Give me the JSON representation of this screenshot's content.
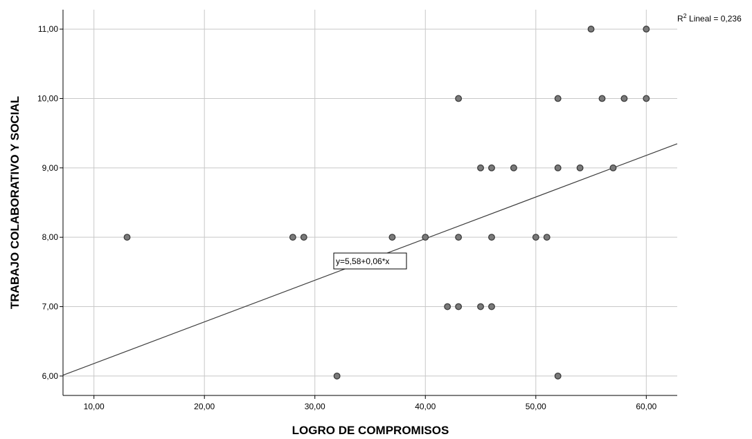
{
  "chart_data": {
    "type": "scatter",
    "xlabel": "LOGRO DE COMPROMISOS",
    "ylabel": "TRABAJO COLABORATIVO Y SOCIAL",
    "xlim": [
      7.2,
      62.8
    ],
    "ylim": [
      5.72,
      11.28
    ],
    "x_ticks": [
      10,
      20,
      30,
      40,
      50,
      60
    ],
    "x_tick_labels": [
      "10,00",
      "20,00",
      "30,00",
      "40,00",
      "50,00",
      "60,00"
    ],
    "y_ticks": [
      6,
      7,
      8,
      9,
      10,
      11
    ],
    "y_tick_labels": [
      "6,00",
      "7,00",
      "8,00",
      "9,00",
      "10,00",
      "11,00"
    ],
    "grid": true,
    "points": [
      {
        "x": 13,
        "y": 8
      },
      {
        "x": 28,
        "y": 8
      },
      {
        "x": 29,
        "y": 8
      },
      {
        "x": 32,
        "y": 6
      },
      {
        "x": 37,
        "y": 8
      },
      {
        "x": 40,
        "y": 8
      },
      {
        "x": 42,
        "y": 7
      },
      {
        "x": 43,
        "y": 7
      },
      {
        "x": 43,
        "y": 8
      },
      {
        "x": 43,
        "y": 10
      },
      {
        "x": 45,
        "y": 7
      },
      {
        "x": 45,
        "y": 9
      },
      {
        "x": 46,
        "y": 7
      },
      {
        "x": 46,
        "y": 8
      },
      {
        "x": 46,
        "y": 9
      },
      {
        "x": 48,
        "y": 9
      },
      {
        "x": 50,
        "y": 8
      },
      {
        "x": 51,
        "y": 8
      },
      {
        "x": 52,
        "y": 6
      },
      {
        "x": 52,
        "y": 9
      },
      {
        "x": 52,
        "y": 10
      },
      {
        "x": 54,
        "y": 9
      },
      {
        "x": 55,
        "y": 11
      },
      {
        "x": 56,
        "y": 10
      },
      {
        "x": 57,
        "y": 9
      },
      {
        "x": 58,
        "y": 10
      },
      {
        "x": 60,
        "y": 10
      },
      {
        "x": 60,
        "y": 11
      }
    ],
    "fit_line": {
      "intercept": 5.58,
      "slope": 0.06
    },
    "fit_label": "y=5,58+0,06*x",
    "r2_prefix": "R",
    "r2_sup": "2",
    "r2_text": " Lineal = 0,236",
    "colors": {
      "marker_fill": "#7a7a7a",
      "marker_stroke": "#3a3a3a",
      "grid": "#c8c8c8",
      "line": "#3c3c3c"
    }
  }
}
